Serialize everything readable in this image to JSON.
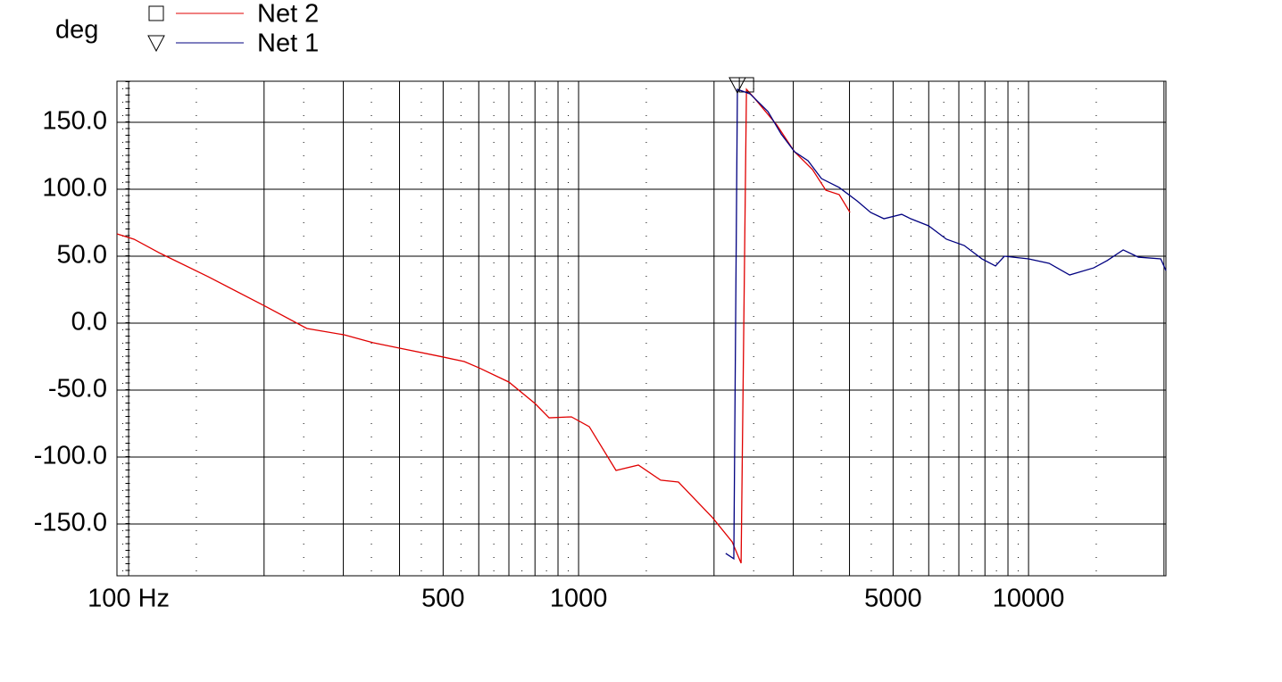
{
  "chart_data": {
    "type": "line",
    "y_label": "deg",
    "xscale": "log",
    "xlim": [
      94.2,
      20200
    ],
    "ylim": [
      -188.7,
      180.7
    ],
    "xticks": [
      {
        "value": 100,
        "label": "100 Hz"
      },
      500,
      1000,
      5000,
      10000
    ],
    "xgrid": [
      200,
      300,
      400,
      600,
      700,
      800,
      900,
      2000,
      3000,
      4000,
      6000,
      7000,
      8000,
      9000,
      20000
    ],
    "yticks": [
      {
        "value": 150,
        "label": "150.0"
      },
      {
        "value": 100,
        "label": "100.0"
      },
      {
        "value": 50,
        "label": "50.0"
      },
      {
        "value": 0,
        "label": "0.0"
      },
      {
        "value": -50,
        "label": "-50.0"
      },
      {
        "value": -100,
        "label": "-100.0"
      },
      {
        "value": -150,
        "label": "-150.0"
      }
    ],
    "grid": true,
    "legend": "top-left",
    "series": [
      {
        "name": "Net 2",
        "color": "#e00000",
        "marker": "square",
        "x": [
          94.2,
          102.8,
          117.8,
          150.2,
          201,
          249,
          301,
          350,
          400,
          500,
          557,
          600,
          700,
          800,
          860,
          964,
          1056,
          1211,
          1358,
          1522,
          1667,
          1985,
          2194,
          2297,
          2361,
          2460,
          2758,
          3020,
          3311,
          3544,
          3795,
          4010
        ],
        "values": [
          66.7,
          62.7,
          52,
          34.7,
          12.7,
          -4,
          -8.7,
          -14.7,
          -18.7,
          -25.3,
          -28.7,
          -33.3,
          -44,
          -60,
          -70.7,
          -70,
          -77.3,
          -110,
          -106,
          -117.3,
          -118.7,
          -145.3,
          -163.3,
          -179.3,
          174.7,
          168,
          148,
          128,
          114.7,
          99.3,
          96,
          82.7
        ]
      },
      {
        "name": "Net 1",
        "color": "#000080",
        "marker": "triangle",
        "x": [
          2123,
          2213,
          2254,
          2404,
          2636,
          2820,
          3020,
          3236,
          3465,
          3795,
          4160,
          4457,
          4771,
          5224,
          5470,
          5998,
          6570,
          7195,
          7880,
          8445,
          8835,
          10000,
          11108,
          12340,
          13958,
          14950,
          16230,
          17540,
          19670,
          20200
        ],
        "values": [
          -172,
          -176,
          174.7,
          171.3,
          158,
          141.3,
          128,
          121.3,
          108,
          101.3,
          91.3,
          82.7,
          78,
          81.3,
          78,
          72.7,
          62.7,
          58,
          48,
          42.7,
          50,
          48,
          44.7,
          36,
          41.3,
          46.7,
          54.7,
          49.3,
          48,
          39.3
        ]
      }
    ]
  }
}
